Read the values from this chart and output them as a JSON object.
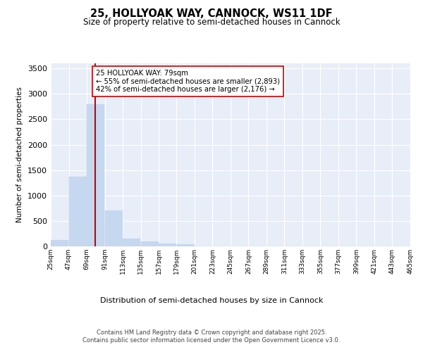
{
  "title": "25, HOLLYOAK WAY, CANNOCK, WS11 1DF",
  "subtitle": "Size of property relative to semi-detached houses in Cannock",
  "xlabel": "Distribution of semi-detached houses by size in Cannock",
  "ylabel": "Number of semi-detached properties",
  "bar_color": "#c5d8f0",
  "bar_edge_color": "#c5d8f0",
  "background_color": "#e8eef8",
  "grid_color": "#ffffff",
  "vline_color": "#cc0000",
  "vline_x": 79,
  "annotation_text": "25 HOLLYOAK WAY: 79sqm\n← 55% of semi-detached houses are smaller (2,893)\n42% of semi-detached houses are larger (2,176) →",
  "annotation_box_color": "#ffffff",
  "annotation_box_edge": "#cc0000",
  "footer_text": "Contains HM Land Registry data © Crown copyright and database right 2025.\nContains public sector information licensed under the Open Government Licence v3.0.",
  "bin_edges": [
    25,
    47,
    69,
    91,
    113,
    135,
    157,
    179,
    201,
    223,
    245,
    267,
    289,
    311,
    333,
    355,
    377,
    399,
    421,
    443,
    465
  ],
  "bin_labels": [
    "25sqm",
    "47sqm",
    "69sqm",
    "91sqm",
    "113sqm",
    "135sqm",
    "157sqm",
    "179sqm",
    "201sqm",
    "223sqm",
    "245sqm",
    "267sqm",
    "289sqm",
    "311sqm",
    "333sqm",
    "355sqm",
    "377sqm",
    "399sqm",
    "421sqm",
    "443sqm",
    "465sqm"
  ],
  "values": [
    130,
    1370,
    2800,
    700,
    155,
    95,
    55,
    35,
    0,
    0,
    0,
    0,
    0,
    0,
    0,
    0,
    0,
    0,
    0,
    0
  ],
  "ylim": [
    0,
    3600
  ],
  "yticks": [
    0,
    500,
    1000,
    1500,
    2000,
    2500,
    3000,
    3500
  ]
}
